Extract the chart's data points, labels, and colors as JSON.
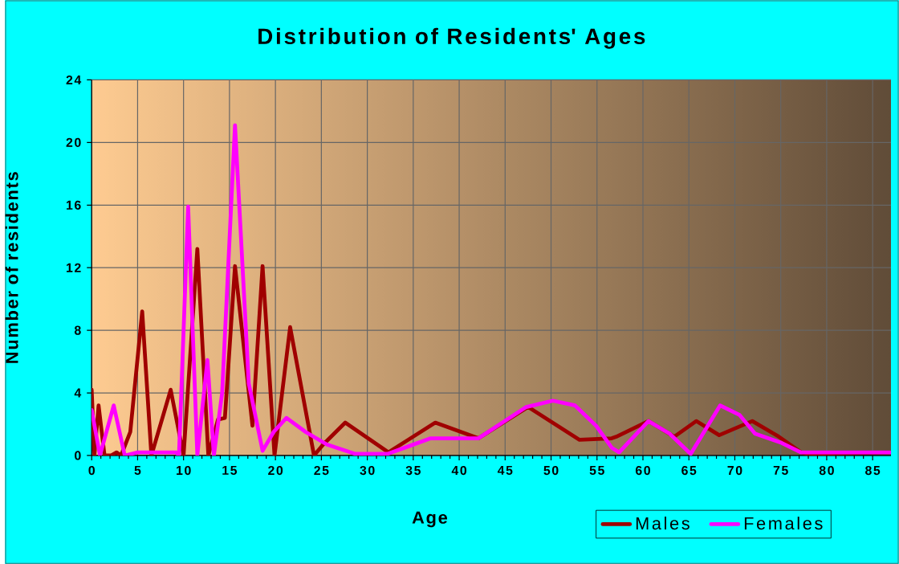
{
  "chart_data": {
    "type": "line",
    "title": "Distribution of Residents' Ages",
    "xlabel": "Age",
    "ylabel": "Number of residents",
    "xlim": [
      0,
      87
    ],
    "ylim": [
      0,
      24
    ],
    "xticks": [
      0,
      5,
      10,
      15,
      20,
      25,
      30,
      35,
      40,
      45,
      50,
      55,
      60,
      65,
      70,
      75,
      80,
      85
    ],
    "yticks": [
      0,
      4,
      8,
      12,
      16,
      20,
      24
    ],
    "grid": true,
    "legend": "bottom right",
    "series": [
      {
        "name": "Males",
        "color": "#a00000",
        "x": [
          0,
          0.3,
          0.75,
          1.4,
          2.1,
          2.7,
          3.2,
          4.2,
          5.5,
          6.5,
          8.6,
          10,
          11.5,
          12.7,
          13.75,
          14.5,
          15.6,
          17.5,
          18.6,
          19.9,
          21.6,
          24.2,
          25.2,
          27.6,
          32.3,
          37.4,
          42.1,
          47.5,
          53.1,
          56.6,
          57.1,
          60.6,
          63.4,
          65.8,
          68.3,
          71.9,
          74.8,
          77.2,
          78,
          87
        ],
        "values": [
          4.2,
          0,
          3.2,
          0,
          0,
          0.2,
          0,
          1.5,
          9.2,
          0,
          4.2,
          0,
          13.2,
          0,
          2.3,
          2.4,
          12.1,
          1.9,
          12.1,
          0,
          8.2,
          0,
          0.7,
          2.1,
          0.2,
          2.1,
          1.1,
          3.1,
          1.0,
          1.1,
          1.2,
          2.2,
          1.2,
          2.2,
          1.3,
          2.2,
          1.2,
          0.2,
          0.1,
          0.2
        ]
      },
      {
        "name": "Females",
        "color": "#ff00ff",
        "x": [
          0,
          0.9,
          2.4,
          3.6,
          5,
          9.2,
          9.5,
          10.5,
          11.5,
          12.6,
          13.3,
          14.2,
          15.6,
          17.1,
          18.6,
          19.8,
          21.2,
          23.3,
          25.6,
          28.7,
          32.2,
          36.9,
          42.1,
          47.3,
          50.2,
          52.6,
          54.9,
          56.6,
          57.4,
          60.6,
          62.9,
          65.2,
          68.4,
          70.5,
          72.2,
          75.1,
          77.2,
          80.3,
          86.9
        ],
        "values": [
          2.9,
          0,
          3.2,
          0,
          0.2,
          0.2,
          0,
          15.9,
          0,
          6.1,
          0,
          4,
          21.1,
          4.6,
          0.3,
          1.5,
          2.4,
          1.5,
          0.7,
          0.1,
          0.1,
          1.1,
          1.1,
          3.1,
          3.5,
          3.2,
          1.9,
          0.5,
          0.2,
          2.2,
          1.4,
          0.1,
          3.2,
          2.6,
          1.4,
          0.8,
          0.2,
          0.2,
          0.2
        ]
      }
    ]
  }
}
